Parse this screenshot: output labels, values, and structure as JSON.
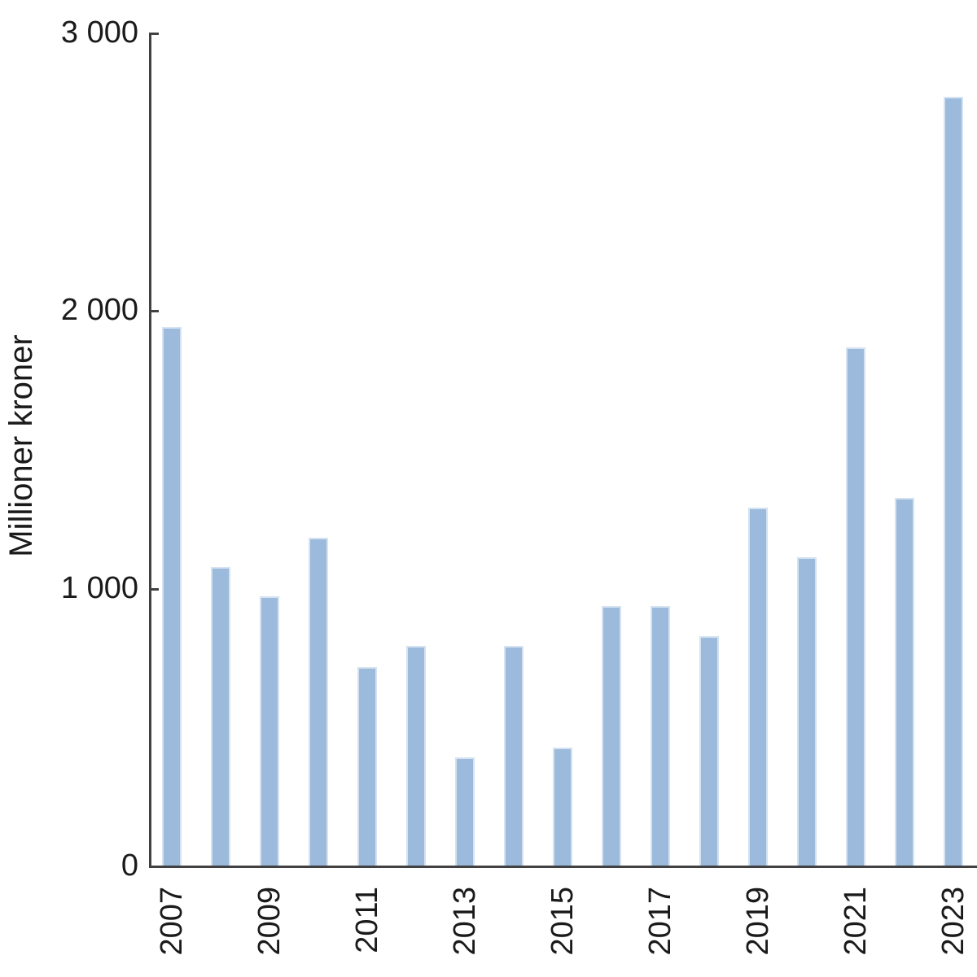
{
  "chart_data": {
    "type": "bar",
    "title": "",
    "xlabel": "",
    "ylabel": "Millioner kroner",
    "categories": [
      "2007",
      "2008",
      "2009",
      "2010",
      "2011",
      "2012",
      "2013",
      "2014",
      "2015",
      "2016",
      "2017",
      "2018",
      "2019",
      "2020",
      "2021",
      "2022",
      "2023"
    ],
    "values": [
      1940,
      1075,
      970,
      1180,
      715,
      790,
      390,
      790,
      425,
      935,
      935,
      825,
      1290,
      1110,
      1865,
      1325,
      2770
    ],
    "series_unit": "millioner kroner",
    "ylim": [
      0,
      3000
    ],
    "yticks": [
      {
        "value": 0,
        "label": "0"
      },
      {
        "value": 1000,
        "label": "1 000"
      },
      {
        "value": 2000,
        "label": "2 000"
      },
      {
        "value": 3000,
        "label": "3 000"
      }
    ],
    "xticks_shown": [
      "2007",
      "2009",
      "2011",
      "2013",
      "2015",
      "2017",
      "2019",
      "2021",
      "2023"
    ],
    "grid": false,
    "legend": null,
    "colors": {
      "bar_fill": "#9cbadb",
      "bar_border": "#d4e2f1",
      "axis": "#414042",
      "text": "#1a1a1a"
    }
  }
}
